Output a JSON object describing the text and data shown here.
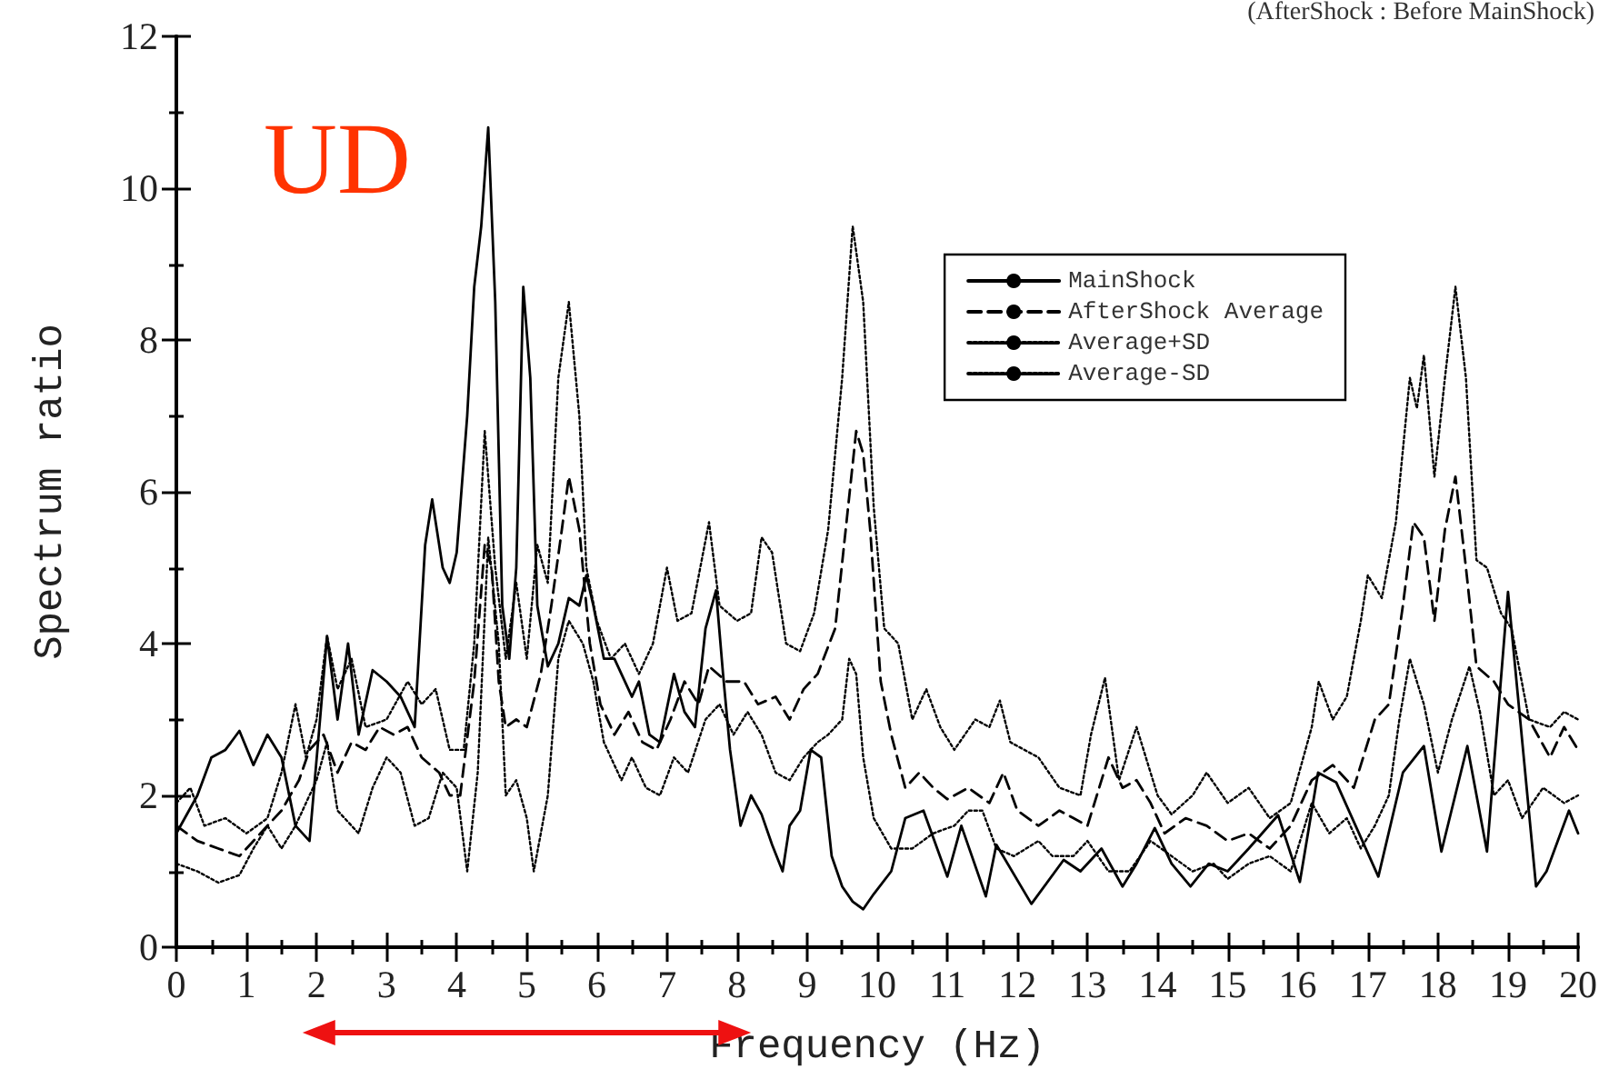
{
  "chart_data": {
    "type": "line",
    "xlabel": "Frequency (Hz)",
    "ylabel": "Spectrum ratio",
    "annotations": [
      "(AfterShock : Before MainShock)",
      "UD"
    ],
    "xlim": [
      0,
      20
    ],
    "xticks": [
      0,
      1,
      2,
      3,
      4,
      5,
      6,
      7,
      8,
      9,
      10,
      11,
      12,
      13,
      14,
      15,
      16,
      17,
      18,
      19,
      20
    ],
    "ylim": [
      0,
      12
    ],
    "yticks": [
      0,
      2,
      4,
      6,
      8,
      10,
      12
    ],
    "grid": false,
    "legend": "top right",
    "marker": "none",
    "series": [
      {
        "name": "MainShock",
        "color": "#000000",
        "line_style": "solid",
        "x": [
          0,
          0.3,
          0.5,
          0.7,
          0.9,
          1.1,
          1.3,
          1.5,
          1.7,
          1.9,
          2.05,
          2.15,
          2.3,
          2.45,
          2.6,
          2.8,
          3.0,
          3.2,
          3.4,
          3.55,
          3.65,
          3.8,
          3.9,
          4.0,
          4.15,
          4.25,
          4.35,
          4.45,
          4.55,
          4.65,
          4.75,
          4.85,
          4.95,
          5.05,
          5.15,
          5.3,
          5.45,
          5.6,
          5.75,
          5.85,
          5.95,
          6.1,
          6.25,
          6.35,
          6.5,
          6.6,
          6.75,
          6.9,
          7.1,
          7.25,
          7.4,
          7.55,
          7.7,
          7.8,
          7.9,
          8.05,
          8.2,
          8.35,
          8.5,
          8.65,
          8.75,
          8.9,
          9.05,
          9.2,
          9.35,
          9.5,
          9.65,
          9.8,
          9.95,
          10.2,
          10.4,
          10.66,
          11.0,
          11.2,
          11.55,
          11.7,
          12.2,
          12.66,
          12.9,
          13.2,
          13.5,
          13.7,
          13.96,
          14.2,
          14.47,
          14.73,
          15.0,
          15.3,
          15.72,
          16.03,
          16.29,
          16.55,
          17.15,
          17.5,
          17.8,
          18.05,
          18.42,
          18.7,
          19.0,
          19.4,
          19.55,
          19.87,
          20
        ],
        "values": [
          1.5,
          2.0,
          2.5,
          2.6,
          2.85,
          2.4,
          2.8,
          2.5,
          1.6,
          1.4,
          3.0,
          4.1,
          3.0,
          4.0,
          2.8,
          3.65,
          3.5,
          3.3,
          2.9,
          5.3,
          5.9,
          5.0,
          4.8,
          5.2,
          7.0,
          8.7,
          9.5,
          10.8,
          8.5,
          4.5,
          3.8,
          5.0,
          8.7,
          7.5,
          4.5,
          3.7,
          4.0,
          4.6,
          4.5,
          4.9,
          4.5,
          3.8,
          3.8,
          3.6,
          3.3,
          3.5,
          2.8,
          2.7,
          3.6,
          3.1,
          2.9,
          4.2,
          4.7,
          3.6,
          2.6,
          1.6,
          2.0,
          1.75,
          1.35,
          1.0,
          1.6,
          1.8,
          2.6,
          2.5,
          1.2,
          0.8,
          0.6,
          0.5,
          0.7,
          1.0,
          1.7,
          1.8,
          0.93,
          1.6,
          0.67,
          1.35,
          0.57,
          1.15,
          1.0,
          1.3,
          0.8,
          1.1,
          1.57,
          1.1,
          0.8,
          1.1,
          1.0,
          1.3,
          1.74,
          0.86,
          2.3,
          2.17,
          0.93,
          2.3,
          2.65,
          1.26,
          2.65,
          1.26,
          4.68,
          0.8,
          1.0,
          1.8,
          1.5
        ]
      },
      {
        "name": "AfterShock Average",
        "color": "#000000",
        "line_style": "dashed",
        "x": [
          0,
          0.3,
          0.6,
          0.9,
          1.2,
          1.5,
          1.75,
          1.9,
          2.1,
          2.3,
          2.5,
          2.7,
          2.9,
          3.1,
          3.3,
          3.5,
          3.75,
          3.9,
          4.05,
          4.25,
          4.4,
          4.5,
          4.6,
          4.7,
          4.85,
          5.0,
          5.2,
          5.35,
          5.5,
          5.6,
          5.75,
          5.9,
          6.05,
          6.25,
          6.45,
          6.65,
          6.85,
          7.05,
          7.25,
          7.45,
          7.6,
          7.85,
          8.1,
          8.3,
          8.55,
          8.75,
          8.95,
          9.15,
          9.4,
          9.55,
          9.7,
          9.8,
          9.9,
          10.05,
          10.2,
          10.4,
          10.6,
          10.8,
          11.0,
          11.3,
          11.6,
          11.8,
          12.0,
          12.3,
          12.6,
          12.8,
          13.0,
          13.3,
          13.5,
          13.7,
          13.9,
          14.1,
          14.4,
          14.7,
          15.0,
          15.3,
          15.6,
          15.9,
          16.2,
          16.5,
          16.8,
          17.1,
          17.3,
          17.5,
          17.65,
          17.8,
          17.95,
          18.1,
          18.25,
          18.4,
          18.55,
          18.8,
          19.0,
          19.3,
          19.6,
          19.8,
          20
        ],
        "values": [
          1.6,
          1.4,
          1.3,
          1.2,
          1.5,
          1.8,
          2.2,
          2.6,
          2.8,
          2.3,
          2.7,
          2.6,
          2.9,
          2.8,
          2.9,
          2.5,
          2.3,
          2.0,
          2.0,
          3.5,
          5.3,
          5.0,
          3.5,
          2.9,
          3.0,
          2.9,
          3.6,
          4.5,
          5.5,
          6.2,
          5.5,
          4.0,
          3.2,
          2.8,
          3.1,
          2.7,
          2.6,
          3.0,
          3.5,
          3.2,
          3.7,
          3.5,
          3.5,
          3.2,
          3.3,
          3.0,
          3.4,
          3.6,
          4.2,
          5.5,
          6.8,
          6.5,
          5.5,
          3.5,
          2.8,
          2.1,
          2.3,
          2.1,
          1.95,
          2.1,
          1.9,
          2.3,
          1.8,
          1.6,
          1.8,
          1.7,
          1.6,
          2.5,
          2.1,
          2.2,
          1.9,
          1.5,
          1.7,
          1.6,
          1.4,
          1.5,
          1.3,
          1.6,
          2.2,
          2.4,
          2.1,
          3.0,
          3.2,
          4.5,
          5.6,
          5.4,
          4.3,
          5.5,
          6.2,
          5.0,
          3.7,
          3.5,
          3.2,
          3.0,
          2.5,
          2.9,
          2.6
        ]
      },
      {
        "name": "Average+SD",
        "color": "#000000",
        "line_style": "dotted",
        "x": [
          0,
          0.2,
          0.4,
          0.7,
          1.0,
          1.3,
          1.5,
          1.7,
          1.85,
          2.0,
          2.15,
          2.3,
          2.5,
          2.7,
          3.0,
          3.3,
          3.5,
          3.7,
          3.9,
          4.1,
          4.25,
          4.4,
          4.55,
          4.7,
          4.85,
          5.0,
          5.15,
          5.3,
          5.45,
          5.6,
          5.75,
          5.85,
          6.0,
          6.2,
          6.4,
          6.6,
          6.8,
          7.0,
          7.15,
          7.35,
          7.6,
          7.75,
          8.0,
          8.2,
          8.35,
          8.5,
          8.7,
          8.9,
          9.1,
          9.3,
          9.5,
          9.65,
          9.8,
          9.95,
          10.1,
          10.3,
          10.5,
          10.7,
          10.9,
          11.1,
          11.4,
          11.6,
          11.75,
          11.9,
          12.1,
          12.3,
          12.6,
          12.9,
          13.05,
          13.25,
          13.45,
          13.7,
          14.0,
          14.2,
          14.5,
          14.7,
          15.0,
          15.3,
          15.6,
          15.9,
          16.2,
          16.3,
          16.5,
          16.7,
          16.9,
          17.0,
          17.2,
          17.4,
          17.6,
          17.7,
          17.8,
          17.95,
          18.1,
          18.25,
          18.4,
          18.55,
          18.7,
          18.9,
          19.05,
          19.3,
          19.6,
          19.8,
          20
        ],
        "values": [
          1.9,
          2.1,
          1.6,
          1.7,
          1.5,
          1.7,
          2.3,
          3.2,
          2.5,
          3.0,
          4.1,
          3.4,
          3.8,
          2.9,
          3.0,
          3.5,
          3.2,
          3.4,
          2.6,
          2.6,
          4.0,
          6.8,
          5.0,
          3.8,
          4.8,
          3.8,
          5.3,
          4.8,
          7.5,
          8.5,
          7.0,
          5.0,
          4.3,
          3.8,
          4.0,
          3.6,
          4.0,
          5.0,
          4.3,
          4.4,
          5.6,
          4.5,
          4.3,
          4.4,
          5.4,
          5.2,
          4.0,
          3.9,
          4.4,
          5.5,
          7.5,
          9.5,
          8.5,
          5.8,
          4.2,
          4.0,
          3.0,
          3.4,
          2.9,
          2.6,
          3.0,
          2.9,
          3.25,
          2.7,
          2.6,
          2.5,
          2.1,
          2.0,
          2.8,
          3.55,
          2.2,
          2.9,
          2.0,
          1.75,
          2.0,
          2.3,
          1.9,
          2.1,
          1.7,
          1.9,
          2.9,
          3.5,
          3.0,
          3.3,
          4.3,
          4.9,
          4.6,
          5.6,
          7.5,
          7.1,
          7.8,
          6.2,
          7.5,
          8.7,
          7.5,
          5.1,
          5.0,
          4.4,
          4.2,
          3.0,
          2.9,
          3.1,
          3.0
        ]
      },
      {
        "name": "Average-SD",
        "color": "#000000",
        "line_style": "dotted",
        "x": [
          0,
          0.3,
          0.6,
          0.9,
          1.1,
          1.3,
          1.5,
          1.7,
          2.0,
          2.15,
          2.3,
          2.6,
          2.8,
          3.0,
          3.2,
          3.4,
          3.6,
          3.8,
          4.0,
          4.15,
          4.3,
          4.45,
          4.6,
          4.7,
          4.85,
          5.0,
          5.1,
          5.3,
          5.45,
          5.6,
          5.8,
          5.95,
          6.1,
          6.35,
          6.5,
          6.7,
          6.9,
          7.1,
          7.3,
          7.55,
          7.75,
          7.95,
          8.15,
          8.35,
          8.55,
          8.75,
          8.95,
          9.15,
          9.3,
          9.5,
          9.6,
          9.7,
          9.8,
          9.95,
          10.2,
          10.5,
          10.8,
          11.1,
          11.3,
          11.5,
          11.7,
          11.95,
          12.3,
          12.5,
          12.8,
          13.0,
          13.3,
          13.6,
          13.9,
          14.2,
          14.5,
          14.8,
          15.0,
          15.3,
          15.6,
          15.9,
          16.2,
          16.45,
          16.7,
          16.9,
          17.1,
          17.3,
          17.45,
          17.6,
          17.8,
          18.0,
          18.2,
          18.45,
          18.6,
          18.8,
          19.0,
          19.2,
          19.5,
          19.8,
          20
        ],
        "values": [
          1.1,
          1.0,
          0.85,
          0.95,
          1.3,
          1.6,
          1.3,
          1.6,
          2.2,
          2.7,
          1.8,
          1.5,
          2.1,
          2.5,
          2.3,
          1.6,
          1.7,
          2.3,
          2.1,
          1.0,
          2.3,
          5.4,
          4.0,
          2.0,
          2.2,
          1.7,
          1.0,
          2.0,
          3.8,
          4.3,
          4.0,
          3.5,
          2.7,
          2.2,
          2.5,
          2.1,
          2.0,
          2.5,
          2.3,
          3.0,
          3.2,
          2.8,
          3.1,
          2.8,
          2.3,
          2.2,
          2.5,
          2.7,
          2.8,
          3.0,
          3.8,
          3.6,
          2.5,
          1.7,
          1.3,
          1.3,
          1.5,
          1.6,
          1.8,
          1.8,
          1.3,
          1.2,
          1.4,
          1.2,
          1.2,
          1.4,
          1.0,
          1.0,
          1.4,
          1.2,
          1.0,
          1.1,
          0.9,
          1.1,
          1.2,
          1.0,
          1.9,
          1.5,
          1.7,
          1.3,
          1.6,
          2.0,
          3.0,
          3.8,
          3.2,
          2.3,
          3.0,
          3.7,
          3.1,
          2.0,
          2.2,
          1.7,
          2.1,
          1.9,
          2.0
        ]
      }
    ]
  }
}
